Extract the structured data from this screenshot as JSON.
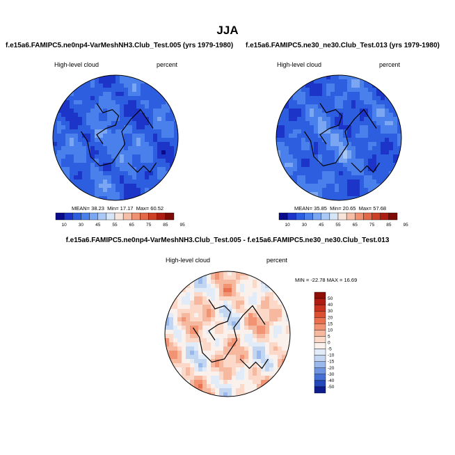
{
  "figure": {
    "title": "JJA"
  },
  "panels": [
    {
      "id": "test",
      "title": "f.e15a6.FAMIPC5.ne0np4-VarMeshNH3.Club_Test.005 (yrs 1979-1980)",
      "variable": "High-level cloud",
      "units": "percent",
      "stats": {
        "mean_label": "MEAN=",
        "mean": "38.23",
        "min_label": "Min=",
        "min": "17.17",
        "max_label": "Max=",
        "max": "60.52"
      }
    },
    {
      "id": "control",
      "title": "f.e15a6.FAMIPC5.ne30_ne30.Club_Test.013 (yrs 1979-1980)",
      "variable": "High-level cloud",
      "units": "percent",
      "stats": {
        "mean_label": "MEAN=",
        "mean": "35.85",
        "min_label": "Min=",
        "min": "20.65",
        "max_label": "Max=",
        "max": "57.68"
      }
    },
    {
      "id": "difference",
      "title": "f.e15a6.FAMIPC5.ne0np4-VarMeshNH3.Club_Test.005 - f.e15a6.FAMIPC5.ne30_ne30.Club_Test.013",
      "variable": "High-level cloud",
      "units": "percent",
      "stats": {
        "min_label": "MIN =",
        "min": "-22.78",
        "max_label": "MAX =",
        "max": "16.69"
      }
    }
  ],
  "chart_data": [
    {
      "type": "heatmap",
      "projection": "north-polar-stereographic",
      "title": "f.e15a6.FAMIPC5.ne0np4-VarMeshNH3.Club_Test.005 (yrs 1979-1980)",
      "variable": "High-level cloud",
      "units": "percent",
      "colorbar_levels": [
        10,
        30,
        45,
        55,
        65,
        75,
        85,
        95
      ],
      "colorbar_colors": [
        "#0a0a8c",
        "#1c34c8",
        "#2e5ee0",
        "#4a80ec",
        "#7aa6f2",
        "#a9c8f5",
        "#d6e6f7",
        "#f7e4da",
        "#f5bea6",
        "#ef9272",
        "#e26a48",
        "#cc4126",
        "#ad1e12",
        "#7e0b06"
      ],
      "mean": 38.23,
      "min": 17.17,
      "max": 60.52,
      "colorbar_orientation": "horizontal"
    },
    {
      "type": "heatmap",
      "projection": "north-polar-stereographic",
      "title": "f.e15a6.FAMIPC5.ne30_ne30.Club_Test.013 (yrs 1979-1980)",
      "variable": "High-level cloud",
      "units": "percent",
      "colorbar_levels": [
        10,
        30,
        45,
        55,
        65,
        75,
        85,
        95
      ],
      "colorbar_colors": [
        "#0a0a8c",
        "#1c34c8",
        "#2e5ee0",
        "#4a80ec",
        "#7aa6f2",
        "#a9c8f5",
        "#d6e6f7",
        "#f7e4da",
        "#f5bea6",
        "#ef9272",
        "#e26a48",
        "#cc4126",
        "#ad1e12",
        "#7e0b06"
      ],
      "mean": 35.85,
      "min": 20.65,
      "max": 57.68,
      "colorbar_orientation": "horizontal"
    },
    {
      "type": "heatmap",
      "projection": "north-polar-stereographic",
      "title": "f.e15a6.FAMIPC5.ne0np4-VarMeshNH3.Club_Test.005 - f.e15a6.FAMIPC5.ne30_ne30.Club_Test.013",
      "variable": "High-level cloud",
      "units": "percent",
      "colorbar_levels": [
        50,
        40,
        30,
        20,
        15,
        10,
        5,
        0,
        -5,
        -10,
        -15,
        -20,
        -30,
        -40,
        -50
      ],
      "colorbar_colors": [
        "#8f0e08",
        "#b01c12",
        "#c8321e",
        "#dc5032",
        "#ea7050",
        "#f29474",
        "#f7b8a0",
        "#fbd8c8",
        "#fbf1ec",
        "#e2ecf8",
        "#c2d6f2",
        "#9ab8ec",
        "#6e94e2",
        "#4670d4",
        "#2448bc",
        "#0e1c8e"
      ],
      "min": -22.78,
      "max": 16.69,
      "colorbar_orientation": "vertical"
    }
  ]
}
